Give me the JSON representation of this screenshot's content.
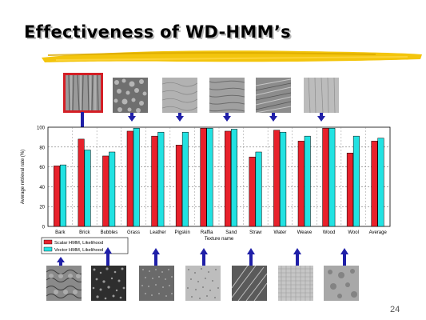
{
  "slide": {
    "title": "Effectiveness of WD-HMM’s",
    "page_number": "24",
    "colors": {
      "highlight_box": "#d41f26",
      "arrow": "#1f1fa8",
      "brush": "#f2c200"
    }
  },
  "chart_data": {
    "type": "bar",
    "ylabel": "Average retrieval rate (%)",
    "xlabel": "Texture name",
    "ylim": [
      0,
      100
    ],
    "yticks": [
      0,
      20,
      40,
      60,
      80,
      100
    ],
    "grid": true,
    "legend_position": "bottom-left",
    "categories": [
      "Bark",
      "Brick",
      "Bubbles",
      "Grass",
      "Leather",
      "Pigskin",
      "Raffia",
      "Sand",
      "Straw",
      "Water",
      "Weave",
      "Wood",
      "Wool",
      "Average"
    ],
    "series": [
      {
        "name": "Scalar HMM, Likelihood",
        "color": "#e8212b",
        "values": [
          61,
          88,
          71,
          96,
          91,
          82,
          99,
          96,
          70,
          97,
          86,
          99,
          74,
          86
        ]
      },
      {
        "name": "Vector HMM, Likelihood",
        "color": "#22e2e2",
        "values": [
          62,
          77,
          75,
          99,
          95,
          95,
          99,
          98,
          75,
          95,
          91,
          99,
          91,
          89
        ]
      }
    ]
  },
  "textures": {
    "top": [
      "bark",
      "bubbles",
      "leather",
      "raffia",
      "straw",
      "weave",
      "wool"
    ],
    "bottom": [
      "brick",
      "grass",
      "pigskin",
      "sand",
      "water",
      "wood",
      "average"
    ]
  }
}
